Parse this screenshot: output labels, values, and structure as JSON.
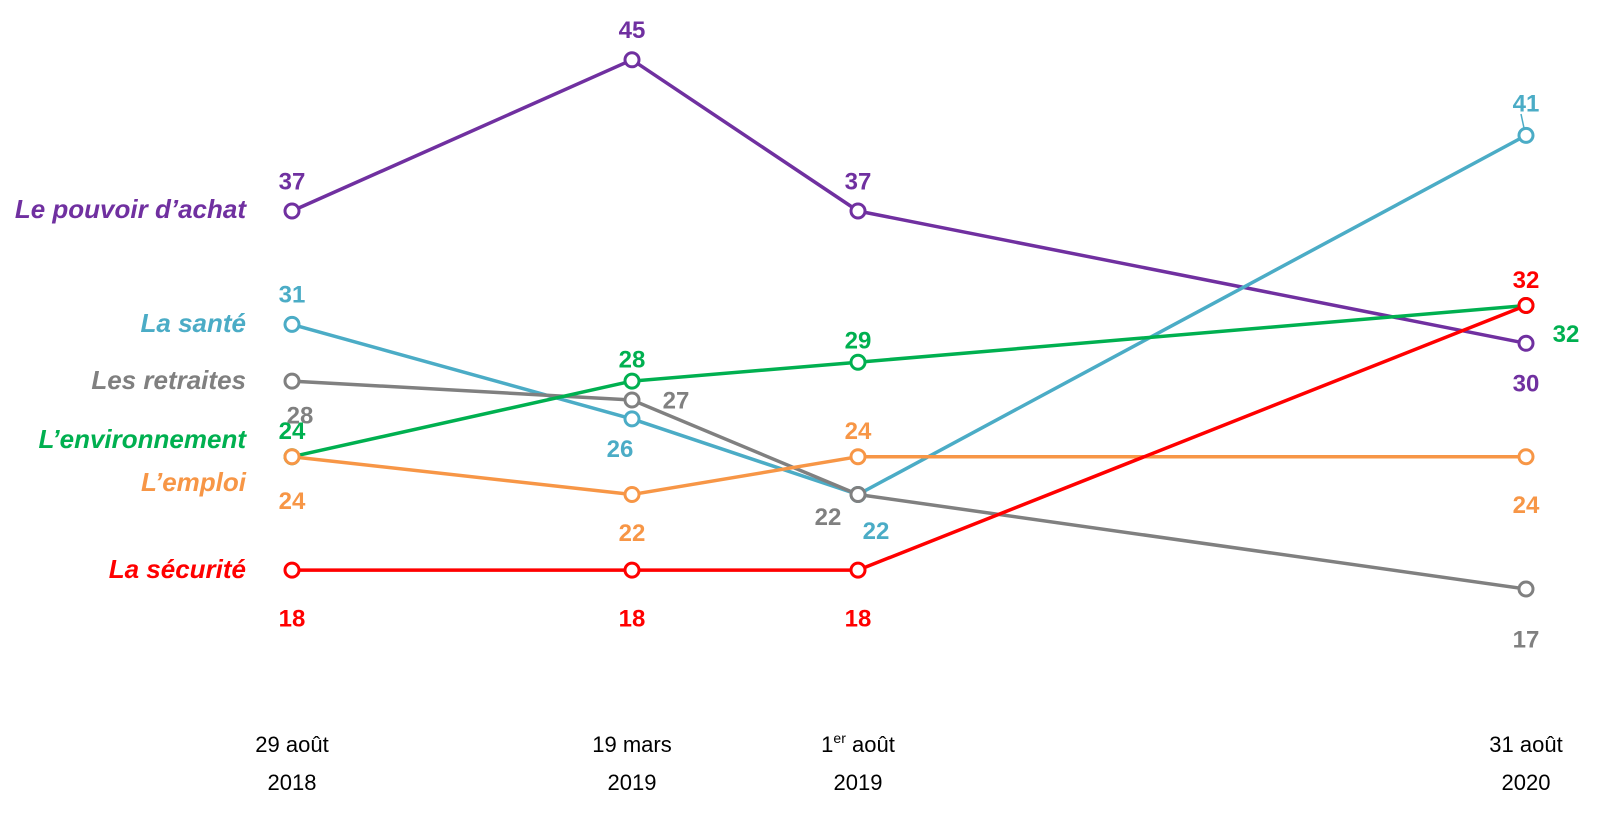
{
  "chart_data": {
    "type": "line",
    "categories": [
      {
        "line1": "29 août",
        "line2": "2018"
      },
      {
        "line1": "19 mars",
        "line2": "2019"
      },
      {
        "line1_prefix": "1",
        "line1_sup": "er",
        "line1_rest": " août",
        "line2": "2019"
      },
      {
        "line1": "31 août",
        "line2": "2020"
      }
    ],
    "series": [
      {
        "name": "Le pouvoir d’achat",
        "color": "#7030a0",
        "values": [
          37,
          45,
          37,
          30
        ],
        "labels": [
          "37",
          "45",
          "37",
          "30"
        ]
      },
      {
        "name": "La santé",
        "color": "#4bacc6",
        "values": [
          31,
          26,
          22,
          41
        ],
        "labels": [
          "31",
          "26",
          "22",
          "41"
        ]
      },
      {
        "name": "Les retraites",
        "color": "#808080",
        "values": [
          28,
          27,
          22,
          17
        ],
        "labels": [
          "28",
          "27",
          "22",
          "17"
        ]
      },
      {
        "name": "L’environnement",
        "color": "#00b050",
        "values": [
          24,
          28,
          29,
          32
        ],
        "labels": [
          "24",
          "28",
          "29",
          "32"
        ]
      },
      {
        "name": "L’emploi",
        "color": "#f79646",
        "values": [
          24,
          22,
          24,
          24
        ],
        "labels": [
          "24",
          "22",
          "24",
          "24"
        ]
      },
      {
        "name": "La sécurité",
        "color": "#ff0000",
        "values": [
          18,
          18,
          18,
          32
        ],
        "labels": [
          "18",
          "18",
          "18",
          "32"
        ]
      }
    ],
    "xlabel": "",
    "ylabel": "",
    "grid": false,
    "legend": "left-labels"
  }
}
